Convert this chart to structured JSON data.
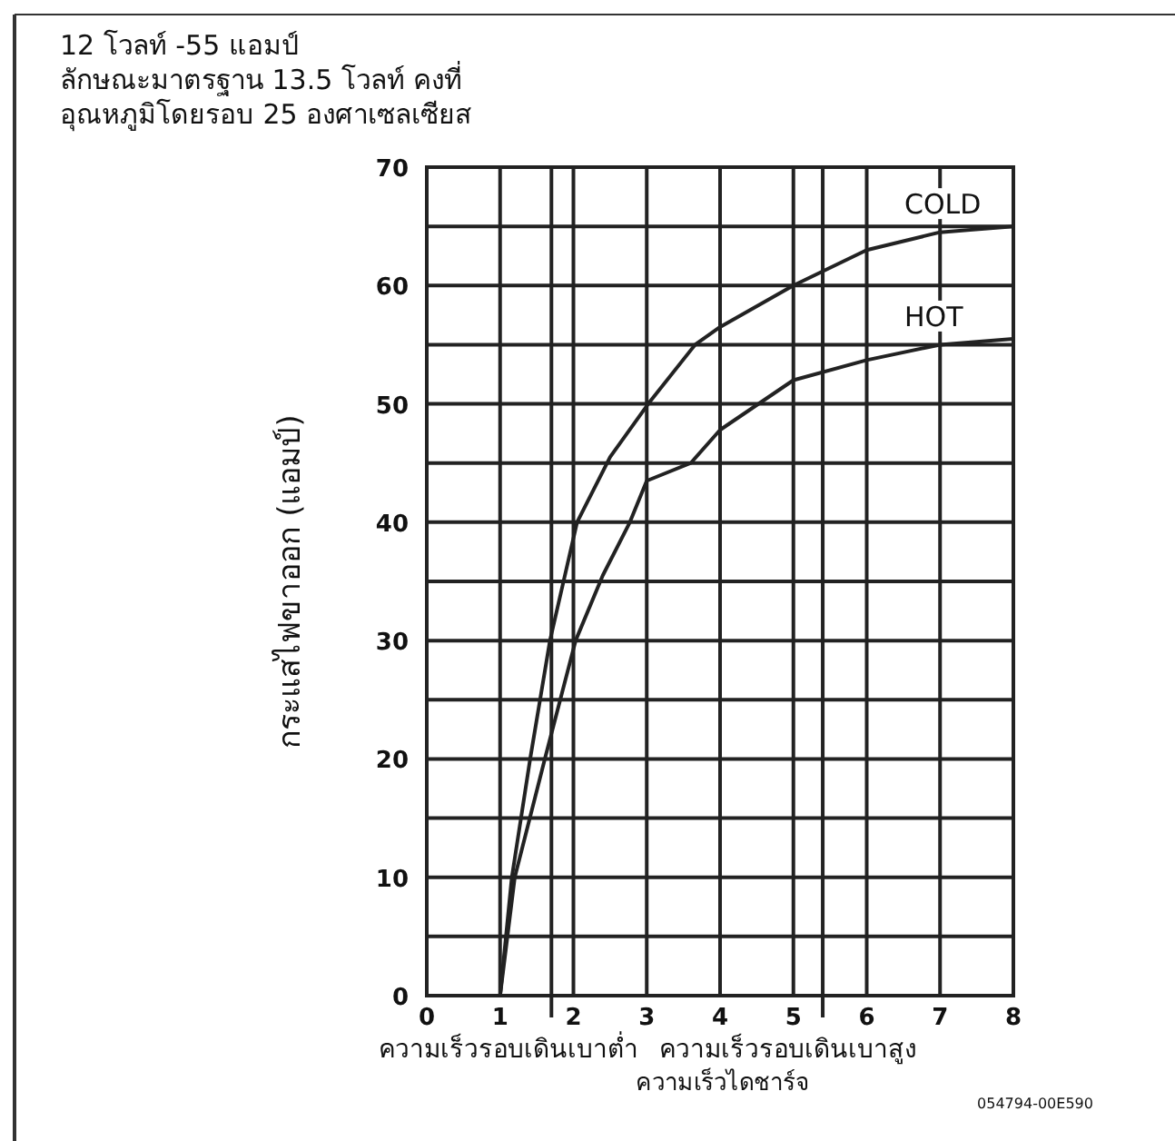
{
  "chart_data": {
    "type": "line",
    "title": "12 โวลท์ -55 แอมป์",
    "subtitle": "ลักษณะมาตรฐาน 13.5 โวลท์ คงที่",
    "ylabel": "กระแสไฟขาออก (แอมป์)",
    "xlim": [
      0,
      8
    ],
    "xticks": [
      0,
      1,
      2,
      3,
      4,
      5,
      6,
      7,
      8
    ],
    "ylim": [
      0,
      70
    ],
    "yticks": [
      0,
      {
        "value": 5,
        "label": null
      },
      10,
      {
        "value": 15,
        "label": null
      },
      20,
      {
        "value": 25,
        "label": null
      },
      30,
      {
        "value": 35,
        "label": null
      },
      40,
      {
        "value": 45,
        "label": null
      },
      50,
      {
        "value": 55,
        "label": null
      },
      60,
      {
        "value": 65,
        "label": null
      },
      70
    ],
    "grid": true,
    "legend": false,
    "marker": "none",
    "line_style": "solid",
    "series": [
      {
        "name": "COLD",
        "color": "#222222",
        "x": [
          1,
          1.16,
          1.41,
          1.68,
          2.05,
          2.5,
          3.02,
          3.66,
          4,
          5,
          6,
          7,
          8
        ],
        "values": [
          0,
          10,
          20,
          30,
          40,
          45.5,
          50,
          55,
          56.5,
          60,
          63,
          64.5,
          65
        ]
      },
      {
        "name": "HOT",
        "color": "#222222",
        "x": [
          1,
          1.2,
          1.61,
          2.03,
          2.4,
          2.77,
          3,
          3.6,
          4,
          5,
          6,
          7,
          8
        ],
        "values": [
          0,
          10,
          20,
          30,
          35.5,
          40,
          43.5,
          45,
          47.8,
          52,
          53.7,
          55,
          55.5
        ]
      }
    ],
    "ref_lines": [
      {
        "axis": "x",
        "value": 1.7,
        "label": "ความเร็วรอบเดินเบาต่ำ",
        "color": "#222222"
      },
      {
        "axis": "x",
        "value": 5.4,
        "label": "ความเร็วรอบเดินเบาสูง",
        "color": "#222222"
      }
    ],
    "annotations": [
      "อุณหภูมิโดยรอบ 25 องศาเซลเซียส",
      "ความเร็วไดชาร์จ",
      "054794-00E590"
    ]
  }
}
